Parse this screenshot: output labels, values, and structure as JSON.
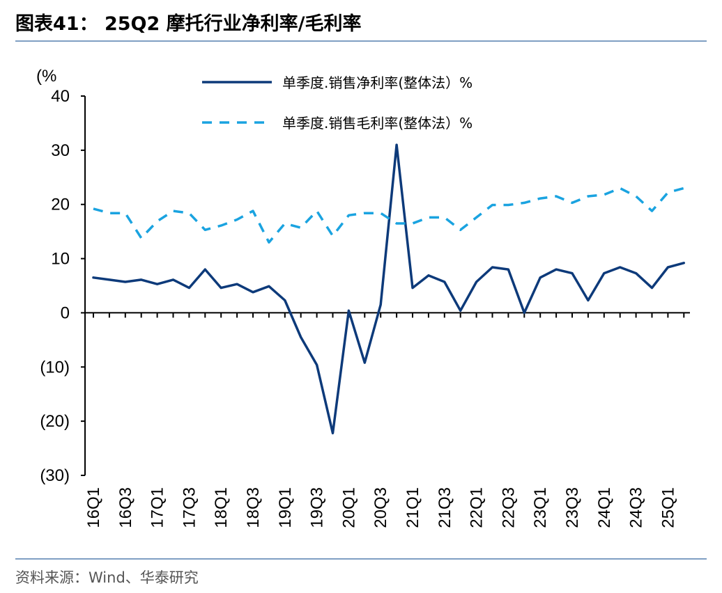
{
  "title": "图表41：  25Q2 摩托行业净利率/毛利率",
  "source": "资料来源：Wind、华泰研究",
  "chart_data": {
    "type": "line",
    "ylabel": "(%",
    "ylim": [
      -30,
      40
    ],
    "yticks": [
      40,
      30,
      20,
      10,
      0,
      -10,
      -20,
      -30
    ],
    "ytick_labels": [
      "40",
      "30",
      "20",
      "10",
      "0",
      "(10)",
      "(20)",
      "(30)"
    ],
    "x": [
      "16Q1",
      "16Q2",
      "16Q3",
      "16Q4",
      "17Q1",
      "17Q2",
      "17Q3",
      "17Q4",
      "18Q1",
      "18Q2",
      "18Q3",
      "18Q4",
      "19Q1",
      "19Q2",
      "19Q3",
      "19Q4",
      "20Q1",
      "20Q2",
      "20Q3",
      "20Q4",
      "21Q1",
      "21Q2",
      "21Q3",
      "21Q4",
      "22Q1",
      "22Q2",
      "22Q3",
      "22Q4",
      "23Q1",
      "23Q2",
      "23Q3",
      "23Q4",
      "24Q1",
      "24Q2",
      "24Q3",
      "24Q4",
      "25Q1",
      "25Q2"
    ],
    "xtick_labels": [
      "16Q1",
      "16Q3",
      "17Q1",
      "17Q3",
      "18Q1",
      "18Q3",
      "19Q1",
      "19Q3",
      "20Q1",
      "20Q3",
      "21Q1",
      "21Q3",
      "22Q1",
      "22Q3",
      "23Q1",
      "23Q3",
      "24Q1",
      "24Q3",
      "25Q1"
    ],
    "grid": false,
    "legend_position": "top",
    "series": [
      {
        "name": "单季度.销售净利率(整体法）%",
        "color": "#0d3a7a",
        "style": "solid",
        "values": [
          6.5,
          6.1,
          5.7,
          6.1,
          5.3,
          6.1,
          4.6,
          8.0,
          4.6,
          5.3,
          3.8,
          4.9,
          2.3,
          -4.5,
          -9.6,
          -22.2,
          0.4,
          -9.2,
          1.5,
          31.0,
          4.6,
          6.9,
          5.7,
          0.4,
          5.7,
          8.4,
          8.0,
          0.0,
          6.5,
          8.0,
          7.3,
          2.3,
          7.3,
          8.4,
          7.3,
          4.6,
          8.4,
          9.2
        ]
      },
      {
        "name": "单季度.销售毛利率(整体法）%",
        "color": "#1aa3e0",
        "style": "dashed",
        "values": [
          19.2,
          18.4,
          18.4,
          13.8,
          16.9,
          18.8,
          18.4,
          15.3,
          16.1,
          17.2,
          18.8,
          13.0,
          16.5,
          15.7,
          18.8,
          14.2,
          18.0,
          18.4,
          18.4,
          16.5,
          16.5,
          17.6,
          17.6,
          15.3,
          17.6,
          19.9,
          19.9,
          20.3,
          21.1,
          21.5,
          20.3,
          21.5,
          21.8,
          23.0,
          21.5,
          18.8,
          22.2,
          23.0
        ]
      }
    ]
  }
}
